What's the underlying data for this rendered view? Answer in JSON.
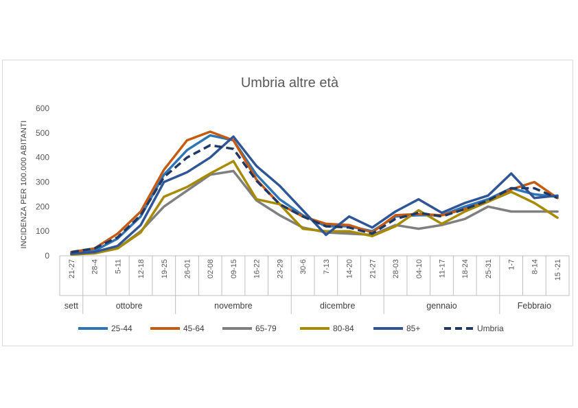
{
  "chart_data": {
    "type": "line",
    "title": "Umbria altre età",
    "ylabel": "INCIDENZA PER 100.000 ABITANTI",
    "xlabel": "",
    "ylim": [
      0,
      600
    ],
    "yticks": [
      0,
      100,
      200,
      300,
      400,
      500,
      600
    ],
    "grid": false,
    "legend_position": "bottom",
    "categories": [
      "21-27",
      "28-4",
      "5-11",
      "12-18",
      "19-25",
      "26-01",
      "02-08",
      "09-15",
      "16-22",
      "23-29",
      "30-6",
      "7-13",
      "14-20",
      "21-27",
      "28-03",
      "04-10",
      "11-17",
      "18-24",
      "25-31",
      "1-7",
      "8-14",
      "15 -21"
    ],
    "groups": [
      {
        "label": "sett",
        "start": 0,
        "end": 0
      },
      {
        "label": "ottobre",
        "start": 1,
        "end": 4
      },
      {
        "label": "novembre",
        "start": 5,
        "end": 9
      },
      {
        "label": "dicembre",
        "start": 10,
        "end": 13
      },
      {
        "label": "gennaio",
        "start": 14,
        "end": 18
      },
      {
        "label": "Febbraio",
        "start": 19,
        "end": 21
      }
    ],
    "series": [
      {
        "name": "25-44",
        "color": "#2E75B6",
        "dashed": false,
        "values": [
          12,
          20,
          70,
          160,
          330,
          430,
          490,
          470,
          330,
          230,
          165,
          120,
          120,
          100,
          160,
          165,
          165,
          200,
          230,
          275,
          250,
          240
        ]
      },
      {
        "name": "45-64",
        "color": "#C55A11",
        "dashed": false,
        "values": [
          15,
          30,
          90,
          180,
          350,
          470,
          505,
          470,
          310,
          210,
          160,
          130,
          125,
          95,
          165,
          170,
          165,
          190,
          220,
          270,
          300,
          235
        ]
      },
      {
        "name": "65-79",
        "color": "#7F7F7F",
        "dashed": false,
        "values": [
          8,
          10,
          30,
          100,
          200,
          265,
          330,
          345,
          225,
          165,
          115,
          95,
          90,
          85,
          125,
          110,
          125,
          150,
          200,
          180,
          180,
          180
        ]
      },
      {
        "name": "80-84",
        "color": "#A68A00",
        "dashed": false,
        "values": [
          5,
          10,
          30,
          95,
          240,
          280,
          335,
          385,
          230,
          210,
          110,
          100,
          100,
          80,
          120,
          185,
          130,
          180,
          220,
          260,
          215,
          155
        ]
      },
      {
        "name": "85+",
        "color": "#2F5597",
        "dashed": false,
        "values": [
          8,
          15,
          40,
          125,
          300,
          340,
          400,
          485,
          365,
          285,
          185,
          85,
          160,
          115,
          180,
          230,
          175,
          215,
          245,
          335,
          235,
          245
        ]
      },
      {
        "name": "Umbria",
        "color": "#1F3864",
        "dashed": true,
        "values": [
          15,
          30,
          75,
          165,
          320,
          400,
          450,
          435,
          305,
          210,
          160,
          120,
          115,
          90,
          150,
          175,
          160,
          190,
          225,
          275,
          275,
          235
        ]
      }
    ]
  }
}
